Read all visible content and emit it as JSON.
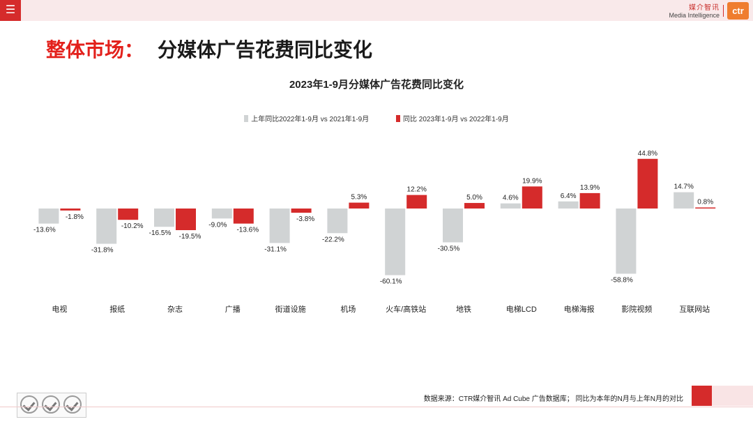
{
  "header": {
    "menu_icon": "hamburger-menu-icon",
    "brand_cn": "媒介智讯",
    "brand_en": "Media Intelligence",
    "brand_logo": "ctr"
  },
  "page": {
    "title_red": "整体市场：",
    "title_dark": "分媒体广告花费同比变化"
  },
  "footer": {
    "source": "数据来源：CTR媒介智讯 Ad Cube 广告数据库；  同比为本年的N月与上年N月的对比"
  },
  "colors": {
    "prev": "#d0d3d4",
    "curr": "#d52b2b",
    "accent": "#e3211c"
  },
  "chart_data": {
    "type": "bar",
    "title": "2023年1-9月分媒体广告花费同比变化",
    "legend_position": "top",
    "grid": false,
    "categories": [
      "电视",
      "报纸",
      "杂志",
      "广播",
      "街道设施",
      "机场",
      "火车/高铁站",
      "地铁",
      "电梯LCD",
      "电梯海报",
      "影院视频",
      "互联网站"
    ],
    "series": [
      {
        "name": "上年同比2022年1-9月  vs  2021年1-9月",
        "values": [
          -13.6,
          -31.8,
          -16.5,
          -9.0,
          -31.1,
          -22.2,
          -60.1,
          -30.5,
          4.6,
          6.4,
          -58.8,
          14.7
        ],
        "labels": [
          "-13.6%",
          "-31.8%",
          "-16.5%",
          "-9.0%",
          "-31.1%",
          "-22.2%",
          "-60.1%",
          "-30.5%",
          "4.6%",
          "6.4%",
          "-58.8%",
          "14.7%"
        ]
      },
      {
        "name": "同比 2023年1-9月  vs  2022年1-9月",
        "values": [
          -1.8,
          -10.2,
          -19.5,
          -13.6,
          -3.8,
          5.3,
          12.2,
          5.0,
          19.9,
          13.9,
          44.8,
          0.8
        ],
        "labels": [
          "-1.8%",
          "-10.2%",
          "-19.5%",
          "-13.6%",
          "-3.8%",
          "5.3%",
          "12.2%",
          "5.0%",
          "19.9%",
          "13.9%",
          "44.8%",
          "0.8%"
        ]
      }
    ]
  }
}
